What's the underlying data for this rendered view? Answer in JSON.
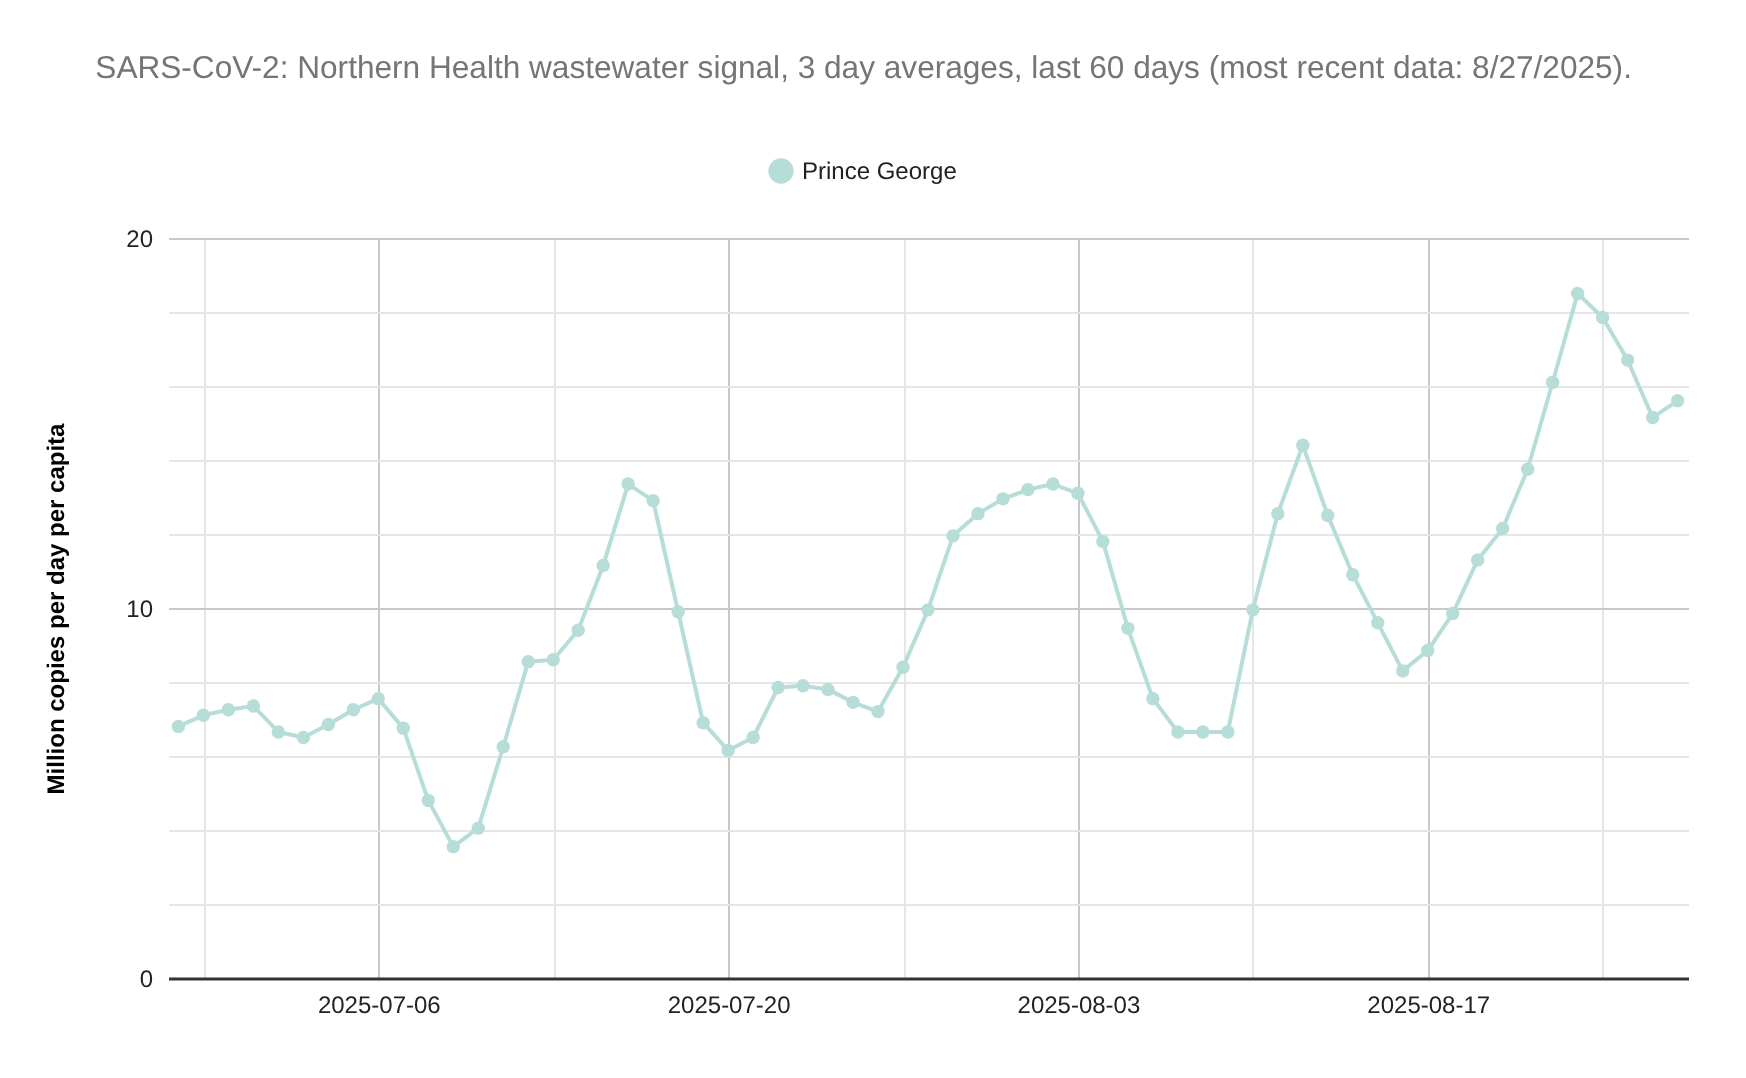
{
  "chart_data": {
    "type": "line",
    "title": "SARS-CoV-2: Northern Health wastewater signal, 3 day averages, last 60 days (most recent data: 8/27/2025).",
    "ylabel": "Million copies per day per capita",
    "x": [
      "2025-06-28",
      "2025-06-29",
      "2025-06-30",
      "2025-07-01",
      "2025-07-02",
      "2025-07-03",
      "2025-07-04",
      "2025-07-05",
      "2025-07-06",
      "2025-07-07",
      "2025-07-08",
      "2025-07-09",
      "2025-07-10",
      "2025-07-11",
      "2025-07-12",
      "2025-07-13",
      "2025-07-14",
      "2025-07-15",
      "2025-07-16",
      "2025-07-17",
      "2025-07-18",
      "2025-07-19",
      "2025-07-20",
      "2025-07-21",
      "2025-07-22",
      "2025-07-23",
      "2025-07-24",
      "2025-07-25",
      "2025-07-26",
      "2025-07-27",
      "2025-07-28",
      "2025-07-29",
      "2025-07-30",
      "2025-07-31",
      "2025-08-01",
      "2025-08-02",
      "2025-08-03",
      "2025-08-04",
      "2025-08-05",
      "2025-08-06",
      "2025-08-07",
      "2025-08-08",
      "2025-08-09",
      "2025-08-10",
      "2025-08-11",
      "2025-08-12",
      "2025-08-13",
      "2025-08-14",
      "2025-08-15",
      "2025-08-16",
      "2025-08-17",
      "2025-08-18",
      "2025-08-19",
      "2025-08-20",
      "2025-08-21",
      "2025-08-22",
      "2025-08-23",
      "2025-08-24",
      "2025-08-25",
      "2025-08-26",
      "2025-08-27"
    ],
    "series": [
      {
        "name": "Prince George",
        "color": "#b7ddd8",
        "values": [
          6.8,
          7.1,
          7.25,
          7.35,
          6.65,
          6.5,
          6.85,
          7.25,
          7.55,
          6.75,
          4.8,
          3.55,
          4.05,
          6.25,
          8.55,
          8.6,
          9.4,
          11.15,
          13.35,
          12.9,
          9.9,
          6.9,
          6.15,
          6.5,
          7.85,
          7.9,
          7.8,
          7.45,
          7.2,
          8.4,
          9.95,
          11.95,
          12.55,
          12.95,
          13.2,
          13.35,
          13.1,
          11.8,
          9.45,
          7.55,
          6.65,
          6.65,
          6.65,
          9.95,
          12.55,
          14.4,
          12.5,
          10.9,
          9.6,
          8.3,
          8.85,
          9.85,
          11.3,
          12.15,
          13.75,
          16.1,
          18.5,
          17.85,
          16.7,
          15.15,
          15.6
        ]
      }
    ],
    "xlim": [
      "2025-06-27T14:00",
      "2025-08-27T10:00"
    ],
    "xticks": [
      {
        "value": "2025-06-29",
        "label": null
      },
      {
        "value": "2025-07-06",
        "label": "2025-07-06"
      },
      {
        "value": "2025-07-13",
        "label": null
      },
      {
        "value": "2025-07-20",
        "label": "2025-07-20"
      },
      {
        "value": "2025-07-27",
        "label": null
      },
      {
        "value": "2025-08-03",
        "label": "2025-08-03"
      },
      {
        "value": "2025-08-10",
        "label": null
      },
      {
        "value": "2025-08-17",
        "label": "2025-08-17"
      },
      {
        "value": "2025-08-24",
        "label": null
      }
    ],
    "ylim": [
      0,
      20
    ],
    "yticks": [
      0,
      {
        "value": 2,
        "label": null
      },
      {
        "value": 4,
        "label": null
      },
      {
        "value": 6,
        "label": null
      },
      {
        "value": 8,
        "label": null
      },
      10,
      {
        "value": 12,
        "label": null
      },
      {
        "value": 14,
        "label": null
      },
      {
        "value": 16,
        "label": null
      },
      {
        "value": 18,
        "label": null
      },
      20
    ],
    "grid": true,
    "legend": "top",
    "marker": "circle",
    "line_style": "solid"
  }
}
